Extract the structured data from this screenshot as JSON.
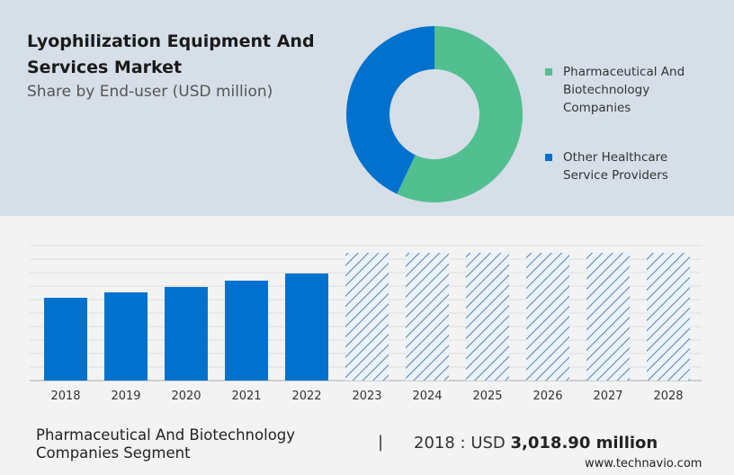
{
  "header": {
    "title": "Lyophilization Equipment And Services Market",
    "subtitle": "Share by End-user (USD million)"
  },
  "chart_data": [
    {
      "type": "pie",
      "style": "donut",
      "series": [
        {
          "name": "Pharmaceutical And Biotechnology Companies",
          "share_pct": 57,
          "color": "#52bf90"
        },
        {
          "name": "Other Healthcare Service Providers",
          "share_pct": 43,
          "color": "#0072ce"
        }
      ],
      "legend": "right"
    },
    {
      "type": "bar",
      "categories": [
        "2018",
        "2019",
        "2020",
        "2021",
        "2022",
        "2023",
        "2024",
        "2025",
        "2026",
        "2027",
        "2028"
      ],
      "values": [
        3018.9,
        3216,
        3413,
        3643,
        3905,
        null,
        null,
        null,
        null,
        null,
        null
      ],
      "forecast": [
        false,
        false,
        false,
        false,
        false,
        true,
        true,
        true,
        true,
        true,
        true
      ],
      "color": "#0072ce",
      "grid": true
    }
  ],
  "footer": {
    "segment": "Pharmaceutical And Biotechnology Companies Segment",
    "separator": "|",
    "year_label": "2018 : USD",
    "value": "3,018.90 million",
    "site": "www.technavio.com"
  }
}
